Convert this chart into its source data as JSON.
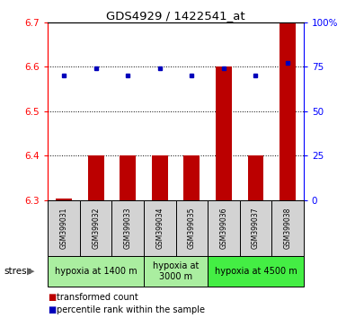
{
  "title": "GDS4929 / 1422541_at",
  "samples": [
    "GSM399031",
    "GSM399032",
    "GSM399033",
    "GSM399034",
    "GSM399035",
    "GSM399036",
    "GSM399037",
    "GSM399038"
  ],
  "red_values": [
    6.305,
    6.4,
    6.4,
    6.4,
    6.4,
    6.6,
    6.4,
    6.7
  ],
  "blue_values_pct": [
    70,
    74,
    70,
    74,
    70,
    74,
    70,
    77
  ],
  "ylim_left": [
    6.3,
    6.7
  ],
  "ylim_right": [
    0,
    100
  ],
  "yticks_left": [
    6.3,
    6.4,
    6.5,
    6.6,
    6.7
  ],
  "yticks_right": [
    0,
    25,
    50,
    75,
    100
  ],
  "groups": [
    {
      "label": "hypoxia at 1400 m",
      "start": 0,
      "end": 3,
      "color": "#aaeea0"
    },
    {
      "label": "hypoxia at\n3000 m",
      "start": 3,
      "end": 5,
      "color": "#aaeea0"
    },
    {
      "label": "hypoxia at 4500 m",
      "start": 5,
      "end": 8,
      "color": "#44ee44"
    }
  ],
  "bar_color": "#bb0000",
  "dot_color": "#0000bb",
  "cell_color": "#d3d3d3",
  "legend_items": [
    {
      "color": "#bb0000",
      "label": "transformed count"
    },
    {
      "color": "#0000bb",
      "label": "percentile rank within the sample"
    }
  ]
}
